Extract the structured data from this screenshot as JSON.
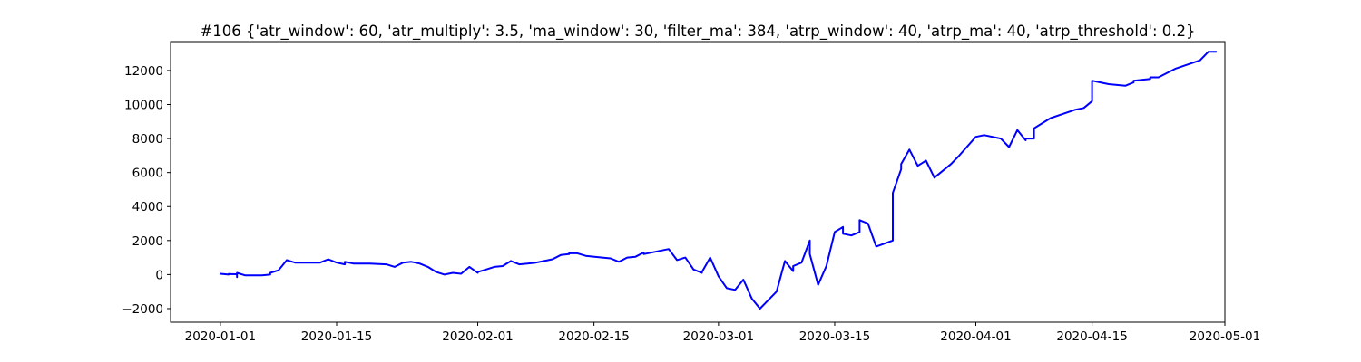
{
  "chart_data": {
    "type": "line",
    "title": "#106 {'atr_window': 60, 'atr_multiply': 3.5, 'ma_window': 30, 'filter_ma': 384, 'atrp_window': 40, 'atrp_ma': 40, 'atrp_threshold': 0.2}",
    "xlabel": "",
    "ylabel": "",
    "x_range": [
      "2019-12-26",
      "2020-05-01"
    ],
    "ylim": [
      -2800,
      13700
    ],
    "grid": false,
    "legend": "none",
    "x_ticks": [
      {
        "date": "2020-01-01",
        "label": "2020-01-01"
      },
      {
        "date": "2020-01-15",
        "label": "2020-01-15"
      },
      {
        "date": "2020-02-01",
        "label": "2020-02-01"
      },
      {
        "date": "2020-02-15",
        "label": "2020-02-15"
      },
      {
        "date": "2020-03-01",
        "label": "2020-03-01"
      },
      {
        "date": "2020-03-15",
        "label": "2020-03-15"
      },
      {
        "date": "2020-04-01",
        "label": "2020-04-01"
      },
      {
        "date": "2020-04-15",
        "label": "2020-04-15"
      },
      {
        "date": "2020-05-01",
        "label": "2020-05-01"
      }
    ],
    "y_ticks": [
      {
        "value": -2000,
        "label": "−2000"
      },
      {
        "value": 0,
        "label": "0"
      },
      {
        "value": 2000,
        "label": "2000"
      },
      {
        "value": 4000,
        "label": "4000"
      },
      {
        "value": 6000,
        "label": "6000"
      },
      {
        "value": 8000,
        "label": "8000"
      },
      {
        "value": 10000,
        "label": "10000"
      },
      {
        "value": 12000,
        "label": "12000"
      }
    ],
    "series": [
      {
        "color": "#0000ff",
        "x": [
          "2020-01-01",
          "2020-01-01",
          "2020-01-02",
          "2020-01-02",
          "2020-01-03",
          "2020-01-03",
          "2020-01-03",
          "2020-01-04",
          "2020-01-04",
          "2020-01-05",
          "2020-01-06",
          "2020-01-07",
          "2020-01-07",
          "2020-01-08",
          "2020-01-09",
          "2020-01-10",
          "2020-01-11",
          "2020-01-12",
          "2020-01-13",
          "2020-01-14",
          "2020-01-15",
          "2020-01-16",
          "2020-01-16",
          "2020-01-17",
          "2020-01-18",
          "2020-01-19",
          "2020-01-21",
          "2020-01-22",
          "2020-01-23",
          "2020-01-24",
          "2020-01-25",
          "2020-01-26",
          "2020-01-27",
          "2020-01-28",
          "2020-01-29",
          "2020-01-30",
          "2020-01-31",
          "2020-02-01",
          "2020-02-01",
          "2020-02-02",
          "2020-02-03",
          "2020-02-04",
          "2020-02-05",
          "2020-02-06",
          "2020-02-07",
          "2020-02-08",
          "2020-02-09",
          "2020-02-10",
          "2020-02-11",
          "2020-02-12",
          "2020-02-12",
          "2020-02-13",
          "2020-02-14",
          "2020-02-16",
          "2020-02-17",
          "2020-02-18",
          "2020-02-19",
          "2020-02-20",
          "2020-02-21",
          "2020-02-21",
          "2020-02-24",
          "2020-02-25",
          "2020-02-26",
          "2020-02-27",
          "2020-02-28",
          "2020-02-28",
          "2020-02-29",
          "2020-03-01",
          "2020-03-02",
          "2020-03-03",
          "2020-03-04",
          "2020-03-05",
          "2020-03-06",
          "2020-03-07",
          "2020-03-08",
          "2020-03-09",
          "2020-03-10",
          "2020-03-10",
          "2020-03-11",
          "2020-03-12",
          "2020-03-12",
          "2020-03-13",
          "2020-03-14",
          "2020-03-15",
          "2020-03-16",
          "2020-03-16",
          "2020-03-17",
          "2020-03-18",
          "2020-03-18",
          "2020-03-19",
          "2020-03-20",
          "2020-03-22",
          "2020-03-22",
          "2020-03-23",
          "2020-03-23",
          "2020-03-24",
          "2020-03-25",
          "2020-03-26",
          "2020-03-27",
          "2020-03-29",
          "2020-03-30",
          "2020-04-01",
          "2020-04-02",
          "2020-04-04",
          "2020-04-05",
          "2020-04-06",
          "2020-04-07",
          "2020-04-07",
          "2020-04-08",
          "2020-04-08",
          "2020-04-10",
          "2020-04-13",
          "2020-04-14",
          "2020-04-15",
          "2020-04-15",
          "2020-04-16",
          "2020-04-17",
          "2020-04-19",
          "2020-04-20",
          "2020-04-20",
          "2020-04-22",
          "2020-04-22",
          "2020-04-23",
          "2020-04-25",
          "2020-04-28",
          "2020-04-29",
          "2020-04-30"
        ],
        "y": [
          0,
          50,
          0,
          30,
          20,
          -150,
          100,
          -50,
          -50,
          -50,
          -50,
          0,
          100,
          250,
          850,
          700,
          700,
          700,
          700,
          900,
          700,
          600,
          750,
          650,
          650,
          650,
          600,
          450,
          700,
          750,
          650,
          450,
          150,
          0,
          100,
          50,
          450,
          100,
          150,
          300,
          450,
          500,
          800,
          600,
          650,
          700,
          800,
          900,
          1150,
          1200,
          1250,
          1250,
          1100,
          1000,
          950,
          750,
          1000,
          1050,
          1300,
          1200,
          1500,
          850,
          1000,
          300,
          100,
          150,
          1000,
          -100,
          -800,
          -900,
          -300,
          -1400,
          -2000,
          -1500,
          -1000,
          800,
          200,
          500,
          700,
          2000,
          1200,
          -600,
          500,
          2500,
          2800,
          2400,
          2300,
          2500,
          3200,
          3000,
          1650,
          2000,
          4800,
          6200,
          6500,
          7350,
          6400,
          6700,
          5700,
          6500,
          7000,
          8100,
          8200,
          8000,
          7500,
          8500,
          7900,
          8000,
          8000,
          8600,
          9200,
          9700,
          9800,
          10200,
          11400,
          11300,
          11200,
          11100,
          11300,
          11400,
          11500,
          11600,
          11600,
          12100,
          12600,
          13100,
          13100
        ]
      }
    ]
  }
}
